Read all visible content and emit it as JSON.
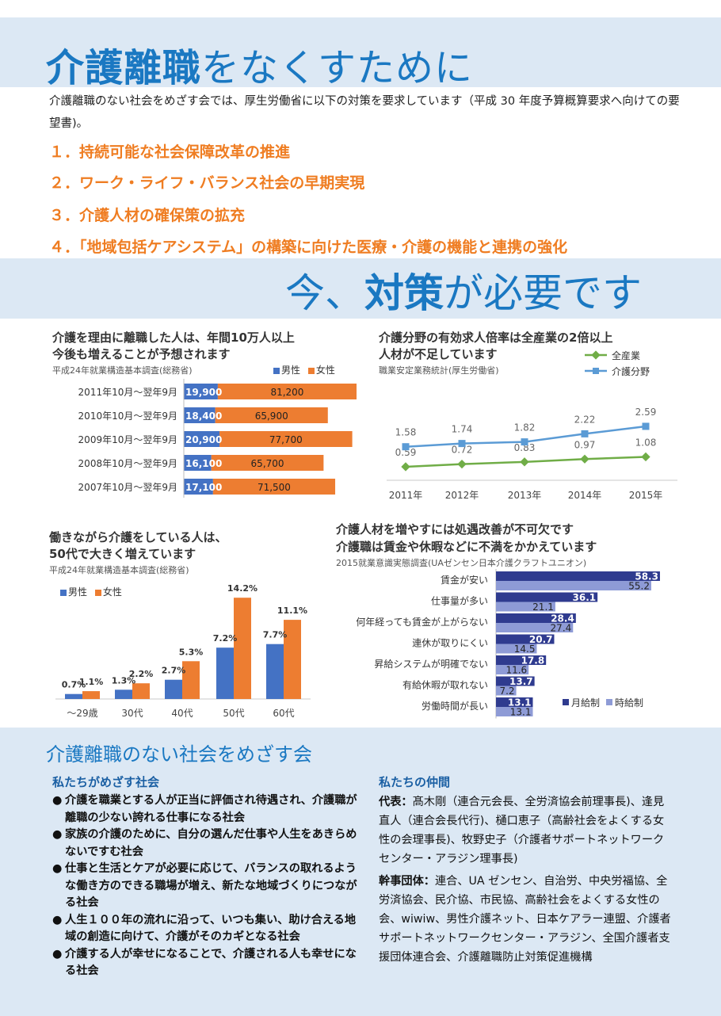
{
  "header": {
    "title_bold": "介護離職",
    "title_rest": "をなくすために",
    "intro": "介護離職のない社会をめざす会では、厚生労働省に以下の対策を要求しています（平成 30 年度予算概算要求へ向けての要望書)。"
  },
  "requests": [
    "１．持続可能な社会保障改革の推進",
    "２．ワーク・ライフ・バランス社会の早期実現",
    "３．介護人材の確保策の拡充",
    "４．「地域包括ケアシステム」の構築に向けた医療・介護の機能と連携の強化"
  ],
  "banner2": {
    "pre": "今、",
    "bold": "対策",
    "post": "が必要です"
  },
  "colors": {
    "blue": "#4472c4",
    "orange": "#ed7d31",
    "green": "#70ad47",
    "lineblue": "#5b9bd5",
    "navy": "#2f3b8f",
    "lavender": "#8e9bd6",
    "heading": "#1a78c2",
    "accent": "#ef7d22",
    "band": "#dce8f4"
  },
  "charts": {
    "resign": {
      "title_line1": "介護を理由に離職した人は、年間10万人以上",
      "title_line2": "今後も増えることが予想されます",
      "source": "平成24年就業構造基本調査(総務省)",
      "legend_male": "男性",
      "legend_female": "女性"
    },
    "jobs": {
      "title_line1": "介護分野の有効求人倍率は全産業の2倍以上",
      "title_line2": "人材が不足しています",
      "source": "職業安定業務統計(厚生労働省)",
      "legend_all": "全産業",
      "legend_care": "介護分野"
    },
    "workers": {
      "title_line1": "働きながら介護をしている人は、",
      "title_line2": "50代で大きく増えています",
      "source": "平成24年就業構造基本調査(総務省)",
      "legend_male": "男性",
      "legend_female": "女性"
    },
    "dissat": {
      "title_line1": "介護人材を増やすには処遇改善が不可欠です",
      "title_line2": "介護職は賃金や休暇などに不満をかかえています",
      "source": "2015就業意識実態調査(UAゼンセン日本介護クラフトユニオン)",
      "legend_monthly": "月給制",
      "legend_hourly": "時給制"
    }
  },
  "chart_data": [
    {
      "type": "bar",
      "orientation": "horizontal",
      "stacked": true,
      "categories": [
        "2011年10月～翌年9月",
        "2010年10月～翌年9月",
        "2009年10月～翌年9月",
        "2008年10月～翌年9月",
        "2007年10月～翌年9月"
      ],
      "series": [
        {
          "name": "男性",
          "values": [
            19900,
            18400,
            20900,
            16100,
            17100
          ],
          "labels": [
            "19,900",
            "18,400",
            "20,900",
            "16,100",
            "17,100"
          ]
        },
        {
          "name": "女性",
          "values": [
            81200,
            65900,
            77700,
            65700,
            71500
          ],
          "labels": [
            "81,200",
            "65,900",
            "77,700",
            "65,700",
            "71,500"
          ]
        }
      ],
      "legend": "top-right"
    },
    {
      "type": "line",
      "x": [
        "2011年",
        "2012年",
        "2013年",
        "2014年",
        "2015年"
      ],
      "series": [
        {
          "name": "全産業",
          "values": [
            0.59,
            0.72,
            0.83,
            0.97,
            1.08
          ],
          "labels": [
            "0.59",
            "0.72",
            "0.83",
            "0.97",
            "1.08"
          ]
        },
        {
          "name": "介護分野",
          "values": [
            1.58,
            1.74,
            1.82,
            2.22,
            2.59
          ],
          "labels": [
            "1.58",
            "1.74",
            "1.82",
            "2.22",
            "2.59"
          ]
        }
      ],
      "legend": "top-right"
    },
    {
      "type": "bar",
      "categories": [
        "～29歳",
        "30代",
        "40代",
        "50代",
        "60代"
      ],
      "series": [
        {
          "name": "男性",
          "values": [
            0.7,
            1.3,
            2.7,
            7.2,
            7.7
          ],
          "labels": [
            "0.7%",
            "1.3%",
            "2.7%",
            "7.2%",
            "7.7%"
          ]
        },
        {
          "name": "女性",
          "values": [
            1.1,
            2.2,
            5.3,
            14.2,
            11.1
          ],
          "labels": [
            "1.1%",
            "2.2%",
            "5.3%",
            "14.2%",
            "11.1%"
          ]
        }
      ],
      "legend": "top-left"
    },
    {
      "type": "bar",
      "orientation": "horizontal",
      "categories": [
        "賃金が安い",
        "仕事量が多い",
        "何年経っても賃金が上がらない",
        "連休が取りにくい",
        "昇給システムが明確でない",
        "有給休暇が取れない",
        "労働時間が長い"
      ],
      "series": [
        {
          "name": "月給制",
          "values": [
            58.3,
            36.1,
            28.4,
            20.7,
            17.8,
            13.7,
            13.1
          ],
          "labels": [
            "58.3",
            "36.1",
            "28.4",
            "20.7",
            "17.8",
            "13.7",
            "13.1"
          ]
        },
        {
          "name": "時給制",
          "values": [
            55.2,
            21.1,
            27.4,
            14.5,
            11.6,
            7.2,
            13.1
          ],
          "labels": [
            "55.2",
            "21.1",
            "27.4",
            "14.5",
            "11.6",
            "7.2",
            "13.1"
          ]
        }
      ],
      "legend": "bottom-right"
    }
  ],
  "org": {
    "heading": "介護離職のない社会をめざす会",
    "goals_title": "私たちがめざす社会",
    "bullet": "●",
    "goals": [
      "介護を職業とする人が正当に評価され待遇され、介護職が離職の少ない誇れる仕事になる社会",
      "家族の介護のために、自分の選んだ仕事や人生をあきらめないですむ社会",
      "仕事と生活とケアが必要に応じて、バランスの取れるような働き方のできる職場が増え、新たな地域づくりにつながる社会",
      "人生１００年の流れに沿って、いつも集い、助け合える地域の創造に向けて、介護がそのカギとなる社会",
      "介護する人が幸せになることで、介護される人も幸せになる社会"
    ],
    "members_title": "私たちの仲間",
    "rep_label": "代表：",
    "rep_text": "髙木剛（連合元会長、全労済協会前理事長)、逢見直人（連合会長代行)、樋口恵子（高齢社会をよくする女性の会理事長)、牧野史子（介護者サポートネットワークセンター・アラジン理事長)",
    "group_label": "幹事団体：",
    "group_text": "連合、UA ゼンセン、自治労、中央労福協、全労済協会、民介協、市民協、高齢社会をよくする女性の会、wiwiw、男性介護ネット、日本ケアラー連盟、介護者サポートネットワークセンター・アラジン、全国介護者支援団体連合会、介護離職防止対策促進機構"
  }
}
